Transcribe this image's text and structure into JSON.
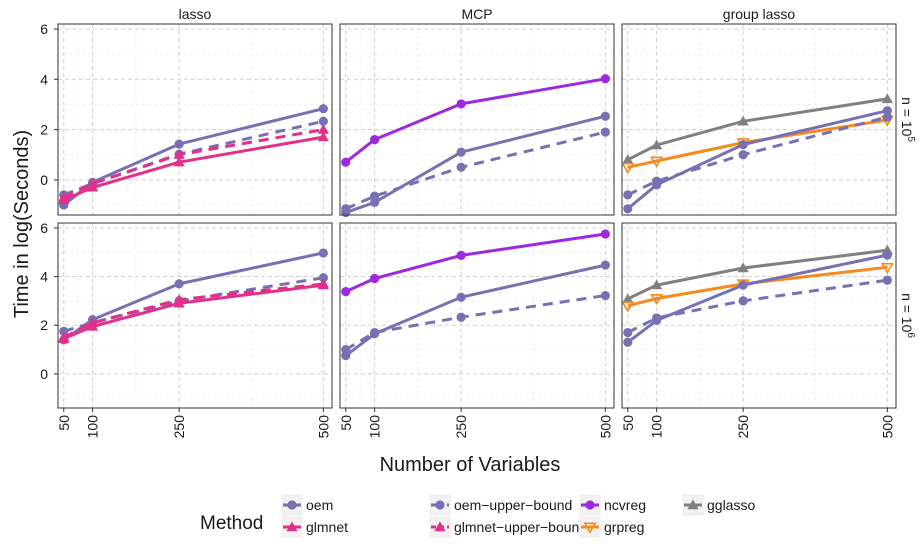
{
  "chart_data": {
    "type": "line",
    "facet_cols": [
      "lasso",
      "MCP",
      "group lasso"
    ],
    "facet_rows": [
      {
        "base": "n = 10",
        "exp": "5"
      },
      {
        "base": "n = 10",
        "exp": "6"
      }
    ],
    "xlabel": "Number of Variables",
    "ylabel": "Time in log(Seconds)",
    "x_ticks": [
      "50",
      "100",
      "250",
      "500"
    ],
    "x_values": [
      50,
      100,
      250,
      500
    ],
    "y_ticks": [
      0,
      2,
      4,
      6
    ],
    "ylim": [
      -1.4,
      6.2
    ],
    "xlim": [
      40,
      515
    ],
    "grid": true,
    "legend": {
      "title": "Method",
      "position": "bottom",
      "items": [
        "oem",
        "glmnet",
        "oem−upper−bound",
        "glmnet−upper−bound",
        "ncvreg",
        "grpreg",
        "gglasso"
      ]
    },
    "series_styles": {
      "oem": {
        "color": "#7771b4",
        "dash": false,
        "marker": "circle"
      },
      "oem−upper−bound": {
        "color": "#7771b4",
        "dash": true,
        "marker": "circle"
      },
      "glmnet": {
        "color": "#e2308a",
        "dash": false,
        "marker": "triangle"
      },
      "glmnet−upper−bound": {
        "color": "#e2308a",
        "dash": true,
        "marker": "triangle"
      },
      "ncvreg": {
        "color": "#9e28e2",
        "dash": false,
        "marker": "circle"
      },
      "grpreg": {
        "color": "#f58a1f",
        "dash": false,
        "marker": "triangle-down-open"
      },
      "gglasso": {
        "color": "#808080",
        "dash": false,
        "marker": "triangle"
      }
    },
    "panels": [
      {
        "row": 0,
        "col": 0,
        "series": [
          {
            "name": "oem",
            "values": [
              -1.0,
              -0.1,
              1.42,
              2.83
            ]
          },
          {
            "name": "oem−upper−bound",
            "values": [
              -0.6,
              -0.15,
              1.02,
              2.33
            ]
          },
          {
            "name": "glmnet−upper−bound",
            "values": [
              -0.7,
              -0.15,
              1.0,
              2.0
            ]
          },
          {
            "name": "glmnet",
            "values": [
              -0.8,
              -0.3,
              0.7,
              1.7
            ]
          }
        ]
      },
      {
        "row": 0,
        "col": 1,
        "series": [
          {
            "name": "ncvreg",
            "values": [
              0.7,
              1.6,
              3.02,
              4.02
            ]
          },
          {
            "name": "oem",
            "values": [
              -1.3,
              -0.9,
              1.1,
              2.53
            ]
          },
          {
            "name": "oem−upper−bound",
            "values": [
              -1.15,
              -0.65,
              0.5,
              1.9
            ]
          }
        ]
      },
      {
        "row": 0,
        "col": 2,
        "series": [
          {
            "name": "gglasso",
            "values": [
              0.8,
              1.38,
              2.33,
              3.22
            ]
          },
          {
            "name": "grpreg",
            "values": [
              0.5,
              0.75,
              1.48,
              2.38
            ]
          },
          {
            "name": "oem",
            "values": [
              -1.15,
              -0.2,
              1.4,
              2.75
            ]
          },
          {
            "name": "oem−upper−bound",
            "values": [
              -0.6,
              -0.05,
              1.0,
              2.5
            ]
          }
        ]
      },
      {
        "row": 1,
        "col": 0,
        "series": [
          {
            "name": "oem",
            "values": [
              1.4,
              2.23,
              3.7,
              4.97
            ]
          },
          {
            "name": "oem−upper−bound",
            "values": [
              1.75,
              2.1,
              3.0,
              3.95
            ]
          },
          {
            "name": "glmnet−upper−bound",
            "values": [
              1.5,
              2.1,
              3.05,
              3.7
            ]
          },
          {
            "name": "glmnet",
            "values": [
              1.45,
              1.95,
              2.9,
              3.65
            ]
          }
        ]
      },
      {
        "row": 1,
        "col": 1,
        "series": [
          {
            "name": "ncvreg",
            "values": [
              3.38,
              3.92,
              4.87,
              5.75
            ]
          },
          {
            "name": "oem",
            "values": [
              0.75,
              1.65,
              3.15,
              4.47
            ]
          },
          {
            "name": "oem−upper−bound",
            "values": [
              1.0,
              1.7,
              2.33,
              3.22
            ]
          }
        ]
      },
      {
        "row": 1,
        "col": 2,
        "series": [
          {
            "name": "gglasso",
            "values": [
              3.08,
              3.65,
              4.35,
              5.08
            ]
          },
          {
            "name": "grpreg",
            "values": [
              2.8,
              3.1,
              3.7,
              4.38
            ]
          },
          {
            "name": "oem",
            "values": [
              1.3,
              2.2,
              3.65,
              4.88
            ]
          },
          {
            "name": "oem−upper−bound",
            "values": [
              1.7,
              2.3,
              3.0,
              3.85
            ]
          }
        ]
      }
    ]
  }
}
